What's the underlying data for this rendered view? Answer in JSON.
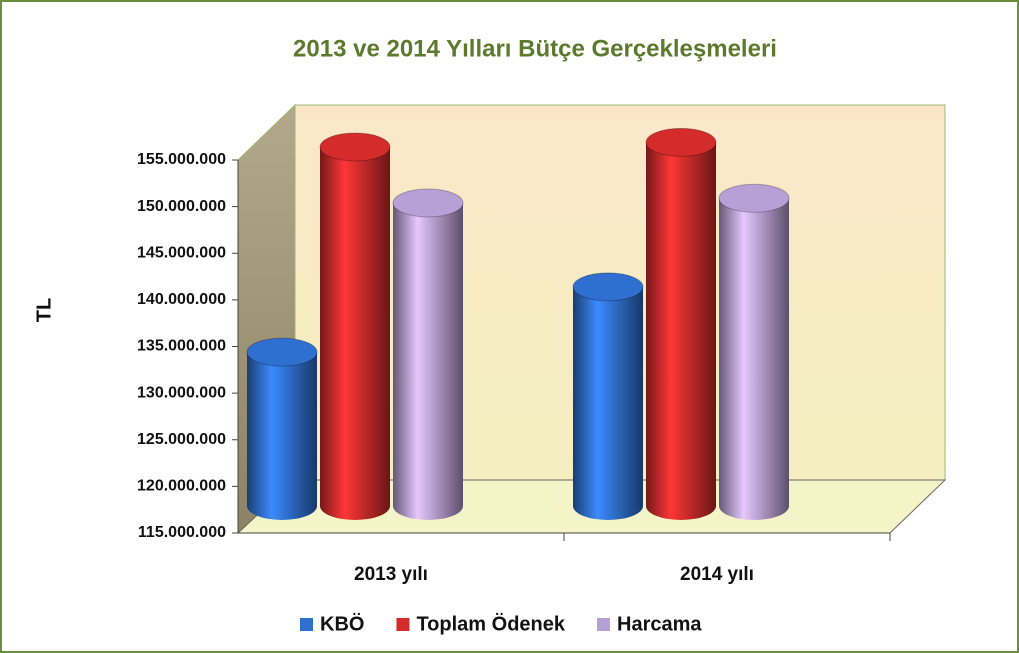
{
  "chart_data": {
    "type": "bar3d",
    "title": "2013 ve 2014 Yılları Bütçe Gerçekleşmeleri",
    "y_label": "TL",
    "categories": [
      "2013 yılı",
      "2014 yılı"
    ],
    "series": [
      {
        "name": "KBÖ",
        "color": "#2f6fd0",
        "values": [
          131500000,
          138500000
        ]
      },
      {
        "name": "Toplam Ödenek",
        "color": "#d42b2b",
        "values": [
          153500000,
          154000000
        ]
      },
      {
        "name": "Harcama",
        "color": "#b7a0d6",
        "values": [
          147500000,
          148000000
        ]
      }
    ],
    "ylim": [
      115000000,
      155000000
    ],
    "yticks": [
      {
        "value": 115000000,
        "label": "115.000.000"
      },
      {
        "value": 120000000,
        "label": "120.000.000"
      },
      {
        "value": 125000000,
        "label": "125.000.000"
      },
      {
        "value": 130000000,
        "label": "130.000.000"
      },
      {
        "value": 135000000,
        "label": "135.000.000"
      },
      {
        "value": 140000000,
        "label": "140.000.000"
      },
      {
        "value": 145000000,
        "label": "145.000.000"
      },
      {
        "value": 150000000,
        "label": "150.000.000"
      },
      {
        "value": 155000000,
        "label": "155.000.000"
      }
    ],
    "grid": false,
    "legend": "bottom"
  }
}
